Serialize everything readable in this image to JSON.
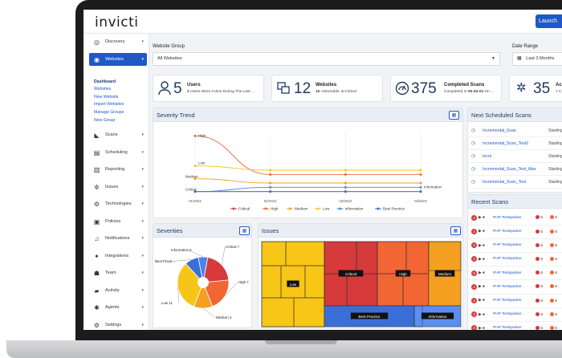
{
  "app": {
    "logo": "invicti",
    "launch_label": "Launch"
  },
  "colors": {
    "accent": "#1f58c7",
    "critical": "#d63a3a",
    "high": "#f26634",
    "medium": "#f5a020",
    "low": "#f5c518",
    "information": "#4c84e8",
    "best_practice": "#3a6fd8"
  },
  "sidebar": {
    "items": [
      {
        "label": "Discovery",
        "icon": "compass-icon"
      },
      {
        "label": "Websites",
        "icon": "globe-icon",
        "active": true
      },
      {
        "label": "Scans",
        "icon": "scan-icon"
      },
      {
        "label": "Scheduling",
        "icon": "calendar-icon"
      },
      {
        "label": "Reporting",
        "icon": "chart-icon"
      },
      {
        "label": "Issues",
        "icon": "bug-icon"
      },
      {
        "label": "Technologies",
        "icon": "cog-icon"
      },
      {
        "label": "Policies",
        "icon": "policy-icon"
      },
      {
        "label": "Notifications",
        "icon": "bell-icon"
      },
      {
        "label": "Integrations",
        "icon": "plug-icon"
      },
      {
        "label": "Team",
        "icon": "team-icon"
      },
      {
        "label": "Activity",
        "icon": "activity-icon"
      },
      {
        "label": "Agents",
        "icon": "agent-icon"
      },
      {
        "label": "Settings",
        "icon": "settings-icon"
      }
    ],
    "websites_sub": [
      "Dashboard",
      "Websites",
      "New Website",
      "Import Websites",
      "Manage Groups",
      "New Group"
    ]
  },
  "filters": {
    "group_label": "Website Group",
    "group_value": "All Websites",
    "date_label": "Date Range",
    "date_value": "Last 3 Months"
  },
  "kpis": [
    {
      "num": "5",
      "title": "Users",
      "sub_bold": "2",
      "sub": " Users Were Active During The Last ..."
    },
    {
      "num": "12",
      "title": "Websites",
      "sub_bold": "10",
      "sub": " Vulnerable, ",
      "sub_bold2": "4",
      "sub2": " Critical"
    },
    {
      "num": "375",
      "title": "Completed Scans",
      "sub": "Completed In ",
      "sub_bold": "06:46:04",
      "sub2": " On ..."
    },
    {
      "num": "35",
      "title": "Ac",
      "sub": "7 C"
    }
  ],
  "severity_trend": {
    "title": "Severity Trend",
    "labels": {
      "high": "High",
      "low": "Low",
      "medium": "Medium",
      "critical": "Critical",
      "information": "Information"
    },
    "legend": [
      "Critical",
      "High",
      "Medium",
      "Low",
      "Information",
      "Best Practice"
    ]
  },
  "severities": {
    "title": "Severities",
    "slice_labels": [
      "Critical 7",
      "High 7",
      "Medium 4",
      "Low 11",
      "Best Practi...",
      "Information 2"
    ]
  },
  "issues": {
    "title": "Issues",
    "labels": [
      "Low",
      "Critical",
      "High",
      "Medium",
      "Best Practice",
      "Information"
    ]
  },
  "next_scheduled": {
    "title": "Next Scheduled Scans",
    "rows": [
      {
        "name": "Incremental_Scan",
        "status": "Starting"
      },
      {
        "name": "Incremental_Scan_Test2",
        "status": "Starting"
      },
      {
        "name": "Incre",
        "status": "Starting"
      },
      {
        "name": "Incremental_Scan_Test_Max",
        "status": "Starting"
      },
      {
        "name": "Incremental_Scan_Test",
        "status": "Starting"
      }
    ]
  },
  "recent_scans": {
    "title": "Recent Scans",
    "rows": [
      {
        "badge": "2",
        "name": "PHP Testsparker",
        "c1": "6",
        "c2": "6"
      },
      {
        "badge": "2",
        "name": "PHP Testsparker",
        "c1": "6",
        "c2": "6"
      },
      {
        "badge": "2",
        "name": "PHP Testsparker",
        "c1": "6",
        "c2": "6"
      },
      {
        "badge": "2",
        "name": "PHP Testsparker",
        "c1": "6",
        "c2": "6"
      },
      {
        "badge": "5",
        "name": "PHP Testsparker",
        "c1": "6",
        "c2": "6"
      },
      {
        "badge": "2",
        "name": "PHP Testsparker",
        "c1": "6",
        "c2": "6"
      },
      {
        "badge": "2",
        "name": "PHP Testsparker",
        "c1": "6",
        "c2": "6"
      },
      {
        "badge": "2",
        "name": "PHP Testsparker",
        "c1": "6",
        "c2": "6"
      },
      {
        "badge": "2",
        "name": "PHP Testsparker",
        "c1": "6",
        "c2": "6"
      }
    ]
  },
  "chart_data": [
    {
      "type": "line",
      "title": "Severity Trend",
      "categories": [
        "01/2022",
        "02/2022",
        "03/2022",
        "04/2022"
      ],
      "series": [
        {
          "name": "Critical",
          "values": [
            1,
            1,
            1,
            1
          ]
        },
        {
          "name": "High",
          "values": [
            14,
            5,
            5,
            5
          ]
        },
        {
          "name": "Medium",
          "values": [
            4,
            3,
            3,
            3
          ]
        },
        {
          "name": "Low",
          "values": [
            7,
            6,
            6,
            6
          ]
        },
        {
          "name": "Information",
          "values": [
            1,
            2,
            2,
            2
          ]
        },
        {
          "name": "Best Practice",
          "values": [
            1,
            1,
            1,
            1
          ]
        }
      ]
    },
    {
      "type": "pie",
      "title": "Severities",
      "series": [
        {
          "name": "Critical",
          "value": 7
        },
        {
          "name": "High",
          "value": 7
        },
        {
          "name": "Medium",
          "value": 4
        },
        {
          "name": "Low",
          "value": 11
        },
        {
          "name": "Best Practice",
          "value": 3
        },
        {
          "name": "Information",
          "value": 2
        }
      ]
    }
  ]
}
